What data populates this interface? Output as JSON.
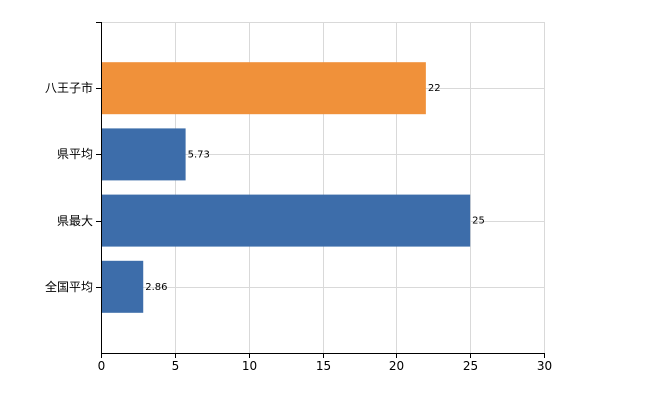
{
  "chart_data": {
    "type": "bar",
    "orientation": "horizontal",
    "title": "",
    "xlabel": "",
    "ylabel": "",
    "categories": [
      "八王子市",
      "県平均",
      "県最大",
      "全国平均"
    ],
    "values": [
      22,
      5.73,
      25,
      2.86
    ],
    "value_labels": [
      "22",
      "5.73",
      "25",
      "2.86"
    ],
    "bar_colors": [
      "#F0913A",
      "#3D6DAA",
      "#3D6DAA",
      "#3D6DAA"
    ],
    "xlim": [
      0,
      30
    ],
    "xticks": [
      0,
      5,
      10,
      15,
      20,
      25,
      30
    ],
    "grid": true,
    "legend": "none"
  },
  "colors": {
    "grid": "#D9D9D9",
    "axis": "#000000"
  }
}
